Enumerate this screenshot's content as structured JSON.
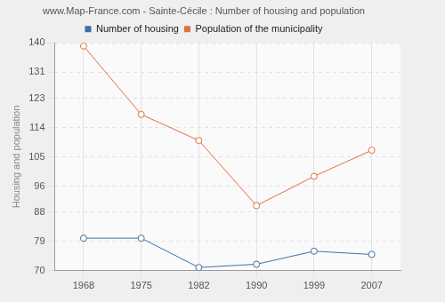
{
  "chart_data": {
    "type": "line",
    "title": "www.Map-France.com - Sainte-Cécile : Number of housing and population",
    "y_label": "Housing and population",
    "categories": [
      "1968",
      "1975",
      "1982",
      "1990",
      "1999",
      "2007"
    ],
    "series": [
      {
        "name": "Number of housing",
        "color": "#3e6fa5",
        "values": [
          80,
          80,
          71,
          72,
          76,
          75
        ]
      },
      {
        "name": "Population of the municipality",
        "color": "#e0703f",
        "values": [
          139,
          118,
          110,
          90,
          99,
          107
        ]
      }
    ],
    "ylim": [
      70,
      140
    ],
    "yticks": [
      70,
      79,
      88,
      96,
      105,
      114,
      123,
      131,
      140
    ],
    "grid": true,
    "legend": "top",
    "marker": "circle"
  }
}
